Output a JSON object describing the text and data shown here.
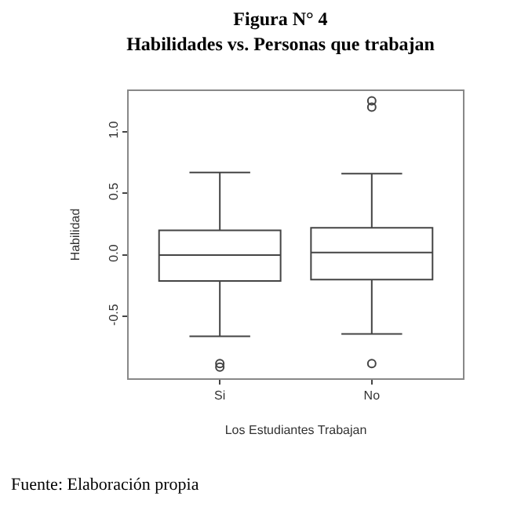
{
  "chart_data": {
    "type": "box",
    "title": "Figura N° 4",
    "subtitle": "Habilidades vs. Personas que trabajan",
    "xlabel": "Los Estudiantes Trabajan",
    "ylabel": "Habilidad",
    "categories": [
      "Si",
      "No"
    ],
    "boxes": [
      {
        "low": -0.66,
        "q1": -0.21,
        "median": 0.0,
        "q3": 0.2,
        "high": 0.67,
        "outliers": [
          -0.88,
          -0.91
        ]
      },
      {
        "low": -0.64,
        "q1": -0.2,
        "median": 0.02,
        "q3": 0.22,
        "high": 0.66,
        "outliers": [
          -0.88,
          1.2,
          1.25
        ]
      }
    ],
    "color": "#444444",
    "ylim": [
      -1.0,
      1.33
    ],
    "yticks": [
      {
        "value": -0.5,
        "label": "-0.5"
      },
      {
        "value": 0,
        "label": "0.0"
      },
      {
        "value": 0.5,
        "label": "0.5"
      },
      {
        "value": 1.0,
        "label": "1.0"
      }
    ],
    "annotations": [
      "Fuente: Elaboración propia"
    ]
  }
}
